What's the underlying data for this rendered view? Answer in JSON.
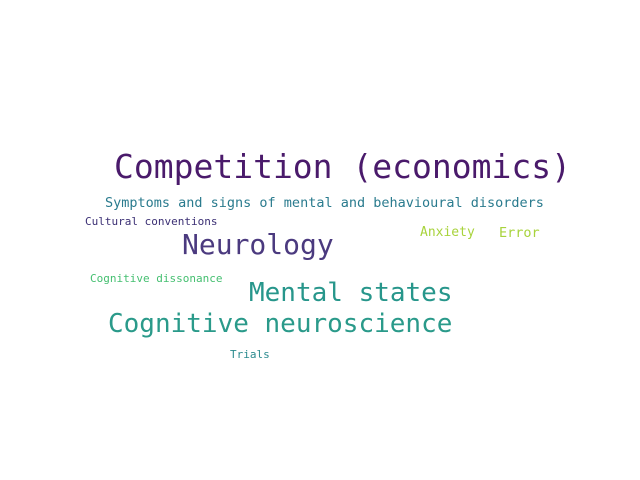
{
  "word_cloud": {
    "words": [
      {
        "text": "Competition (economics)",
        "color": "#4a1a6b"
      },
      {
        "text": "Symptoms and signs of mental and behavioural disorders",
        "color": "#2a7b8e"
      },
      {
        "text": "Cultural conventions",
        "color": "#3b2f74"
      },
      {
        "text": "Neurology",
        "color": "#4b3a7f"
      },
      {
        "text": "Anxiety",
        "color": "#a8d33c"
      },
      {
        "text": "Error",
        "color": "#a8d33c"
      },
      {
        "text": "Cognitive dissonance",
        "color": "#44bf70"
      },
      {
        "text": "Mental states",
        "color": "#27968b"
      },
      {
        "text": "Cognitive neuroscience",
        "color": "#2a9a8a"
      },
      {
        "text": "Trials",
        "color": "#2a8a8e"
      }
    ]
  }
}
